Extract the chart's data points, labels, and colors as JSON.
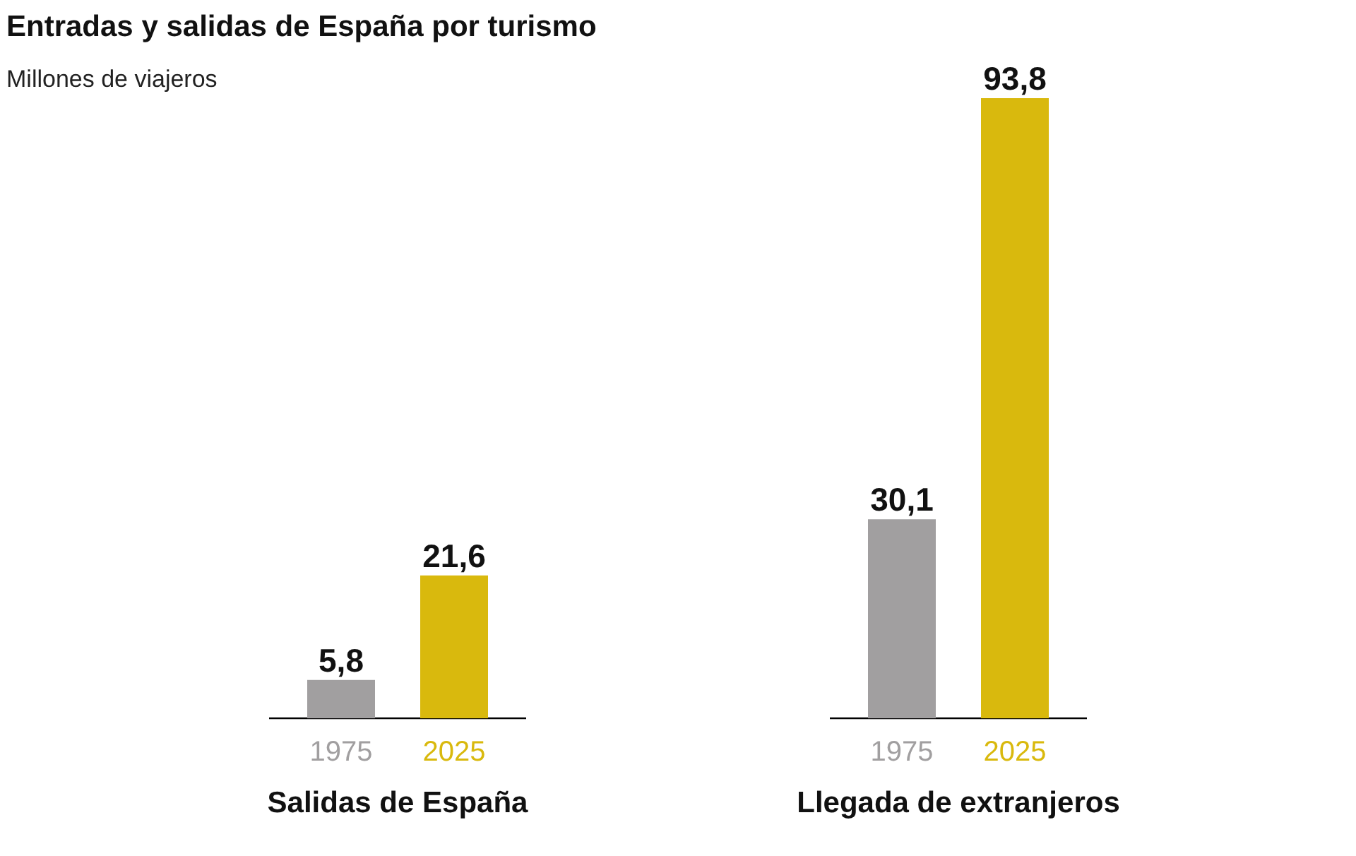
{
  "chart_data": {
    "type": "bar",
    "title": "Entradas y salidas de España por turismo",
    "subtitle": "Millones de viajeros",
    "categories": [
      "Salidas de España",
      "Llegada de extranjeros"
    ],
    "series": [
      {
        "name": "1975",
        "color": "#a19fa0",
        "values": [
          5.8,
          30.1
        ],
        "value_labels": [
          "5,8",
          "30,1"
        ]
      },
      {
        "name": "2025",
        "color": "#d9b90d",
        "values": [
          21.6,
          93.8
        ],
        "value_labels": [
          "21,6",
          "93,8"
        ]
      }
    ],
    "legend": false,
    "grid": false
  }
}
